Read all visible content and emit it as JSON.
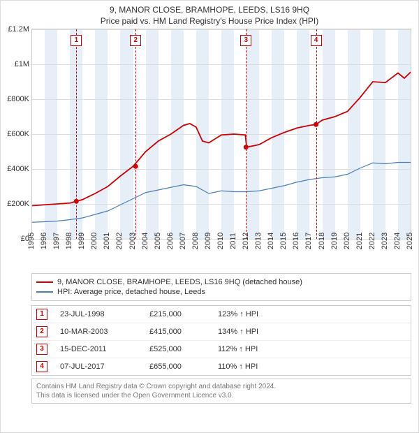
{
  "title": "9, MANOR CLOSE, BRAMHOPE, LEEDS, LS16 9HQ",
  "subtitle": "Price paid vs. HM Land Registry's House Price Index (HPI)",
  "chart": {
    "type": "line",
    "ylim": [
      0,
      1200000
    ],
    "ytick_step": 200000,
    "ylabels": [
      "£0",
      "£200K",
      "£400K",
      "£600K",
      "£800K",
      "£1M",
      "£1.2M"
    ],
    "xlim": [
      1995,
      2025
    ],
    "xlabels": [
      "1995",
      "1996",
      "1997",
      "1998",
      "1999",
      "2000",
      "2001",
      "2002",
      "2003",
      "2004",
      "2005",
      "2006",
      "2007",
      "2008",
      "2009",
      "2010",
      "2011",
      "2012",
      "2013",
      "2014",
      "2015",
      "2016",
      "2017",
      "2018",
      "2019",
      "2020",
      "2021",
      "2022",
      "2023",
      "2024",
      "2025"
    ],
    "background_color": "#ffffff",
    "grid_color": "#dddddd",
    "band_color": "#e6eef7",
    "series": [
      {
        "name": "property",
        "label": "9, MANOR CLOSE, BRAMHOPE, LEEDS, LS16 9HQ (detached house)",
        "color": "#d00000",
        "width": 1.8,
        "points": [
          [
            1995,
            190000
          ],
          [
            1996,
            195000
          ],
          [
            1997,
            200000
          ],
          [
            1998,
            205000
          ],
          [
            1998.5,
            215000
          ],
          [
            1999,
            225000
          ],
          [
            2000,
            260000
          ],
          [
            2001,
            300000
          ],
          [
            2002,
            360000
          ],
          [
            2003,
            415000
          ],
          [
            2004,
            500000
          ],
          [
            2005,
            560000
          ],
          [
            2006,
            600000
          ],
          [
            2007,
            650000
          ],
          [
            2007.5,
            660000
          ],
          [
            2008,
            640000
          ],
          [
            2008.5,
            560000
          ],
          [
            2009,
            550000
          ],
          [
            2010,
            595000
          ],
          [
            2011,
            600000
          ],
          [
            2011.9,
            595000
          ],
          [
            2012,
            525000
          ],
          [
            2013,
            540000
          ],
          [
            2014,
            580000
          ],
          [
            2015,
            610000
          ],
          [
            2016,
            635000
          ],
          [
            2017,
            650000
          ],
          [
            2017.5,
            655000
          ],
          [
            2018,
            680000
          ],
          [
            2019,
            700000
          ],
          [
            2020,
            730000
          ],
          [
            2021,
            810000
          ],
          [
            2022,
            900000
          ],
          [
            2023,
            895000
          ],
          [
            2024,
            950000
          ],
          [
            2024.5,
            920000
          ],
          [
            2025,
            955000
          ]
        ]
      },
      {
        "name": "hpi",
        "label": "HPI: Average price, detached house, Leeds",
        "color": "#4a7ebb",
        "width": 1.2,
        "points": [
          [
            1995,
            95000
          ],
          [
            1996,
            98000
          ],
          [
            1997,
            102000
          ],
          [
            1998,
            110000
          ],
          [
            1999,
            120000
          ],
          [
            2000,
            140000
          ],
          [
            2001,
            160000
          ],
          [
            2002,
            195000
          ],
          [
            2003,
            230000
          ],
          [
            2004,
            265000
          ],
          [
            2005,
            280000
          ],
          [
            2006,
            295000
          ],
          [
            2007,
            310000
          ],
          [
            2008,
            300000
          ],
          [
            2009,
            260000
          ],
          [
            2010,
            275000
          ],
          [
            2011,
            270000
          ],
          [
            2012,
            270000
          ],
          [
            2013,
            275000
          ],
          [
            2014,
            290000
          ],
          [
            2015,
            305000
          ],
          [
            2016,
            325000
          ],
          [
            2017,
            340000
          ],
          [
            2018,
            350000
          ],
          [
            2019,
            355000
          ],
          [
            2020,
            370000
          ],
          [
            2021,
            405000
          ],
          [
            2022,
            435000
          ],
          [
            2023,
            430000
          ],
          [
            2024,
            438000
          ],
          [
            2025,
            438000
          ]
        ]
      }
    ],
    "markers": [
      {
        "n": "1",
        "x": 1998.5,
        "color": "#d00000"
      },
      {
        "n": "2",
        "x": 2003.2,
        "color": "#d00000"
      },
      {
        "n": "3",
        "x": 2011.95,
        "color": "#d00000"
      },
      {
        "n": "4",
        "x": 2017.5,
        "color": "#d00000"
      }
    ],
    "sale_points": [
      {
        "x": 1998.5,
        "y": 215000
      },
      {
        "x": 2003.2,
        "y": 415000
      },
      {
        "x": 2011.95,
        "y": 525000
      },
      {
        "x": 2017.5,
        "y": 655000
      }
    ]
  },
  "legend": {
    "rows": [
      {
        "color": "#d00000",
        "label": "9, MANOR CLOSE, BRAMHOPE, LEEDS, LS16 9HQ (detached house)"
      },
      {
        "color": "#4a7ebb",
        "label": "HPI: Average price, detached house, Leeds"
      }
    ]
  },
  "table": {
    "rows": [
      {
        "n": "1",
        "date": "23-JUL-1998",
        "price": "£215,000",
        "hpi": "123% ↑ HPI"
      },
      {
        "n": "2",
        "date": "10-MAR-2003",
        "price": "£415,000",
        "hpi": "134% ↑ HPI"
      },
      {
        "n": "3",
        "date": "15-DEC-2011",
        "price": "£525,000",
        "hpi": "112% ↑ HPI"
      },
      {
        "n": "4",
        "date": "07-JUL-2017",
        "price": "£655,000",
        "hpi": "110% ↑ HPI"
      }
    ]
  },
  "footer": {
    "line1": "Contains HM Land Registry data © Crown copyright and database right 2024.",
    "line2": "This data is licensed under the Open Government Licence v3.0."
  }
}
